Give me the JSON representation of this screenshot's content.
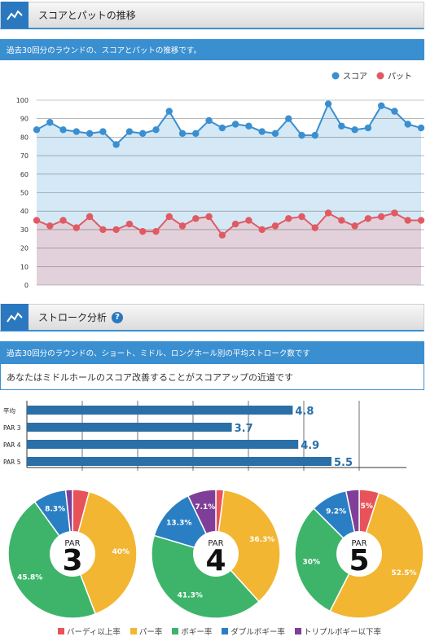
{
  "section1": {
    "title": "スコアとパットの推移",
    "desc": "過去30回分のラウンドの、スコアとパットの推移です。"
  },
  "section2": {
    "title": "ストローク分析",
    "desc": "過去30回分のラウンドの、ショート、ミドル、ロングホール別の平均ストローク数です",
    "advice": "あなたはミドルホールのスコア改善することがスコアアップの近道です"
  },
  "colors": {
    "score": "#3a8fd0",
    "putt": "#e05a63",
    "score_fill": "#d4e8f6",
    "putt_fill": "#e2d1db",
    "bar": "#2a6fa8",
    "birdie": "#e8535a",
    "par": "#f2b632",
    "bogey": "#3db46a",
    "double": "#2a7fc4",
    "triple": "#7f3f98"
  },
  "chart_data": [
    {
      "type": "line",
      "legend_position": "top-right",
      "ylim": [
        0,
        100
      ],
      "yticks": [
        0,
        10,
        20,
        30,
        40,
        50,
        60,
        70,
        80,
        90,
        100
      ],
      "grid": true,
      "series": [
        {
          "name": "スコア",
          "values": [
            84,
            88,
            84,
            83,
            82,
            83,
            76,
            83,
            82,
            84,
            94,
            82,
            82,
            89,
            85,
            87,
            86,
            83,
            82,
            90,
            81,
            81,
            98,
            86,
            84,
            85,
            97,
            94,
            87,
            85
          ]
        },
        {
          "name": "パット",
          "values": [
            35,
            32,
            35,
            31,
            37,
            30,
            30,
            33,
            29,
            29,
            37,
            32,
            36,
            37,
            27,
            33,
            35,
            30,
            32,
            36,
            37,
            31,
            39,
            35,
            32,
            36,
            37,
            39,
            35,
            35
          ]
        }
      ]
    },
    {
      "type": "bar",
      "orientation": "horizontal",
      "categories": [
        "平均",
        "PAR 3",
        "PAR 4",
        "PAR 5"
      ],
      "values": [
        4.8,
        3.7,
        4.9,
        5.5
      ],
      "labels": [
        "4.8",
        "3.7",
        "4.9",
        "5.5"
      ],
      "xlim": [
        0,
        6
      ]
    },
    {
      "type": "pie",
      "donut": true,
      "legend_position": "bottom",
      "categories": [
        "バーディ以上率",
        "パー率",
        "ボギー率",
        "ダブルボギー率",
        "トリプルボギー以下率"
      ],
      "charts": [
        {
          "center_top": "PAR",
          "center_big": "3",
          "values": [
            4.2,
            40,
            45.8,
            8.3,
            1.7
          ],
          "labels": [
            "",
            "40%",
            "45.8%",
            "8.3%",
            ""
          ]
        },
        {
          "center_top": "PAR",
          "center_big": "4",
          "values": [
            2.0,
            36.3,
            41.3,
            13.3,
            7.1
          ],
          "labels": [
            "",
            "36.3%",
            "41.3%",
            "13.3%",
            "7.1%"
          ]
        },
        {
          "center_top": "PAR",
          "center_big": "5",
          "values": [
            5,
            52.5,
            30,
            9.2,
            3.3
          ],
          "labels": [
            "5%",
            "52.5%",
            "30%",
            "9.2%",
            ""
          ]
        }
      ]
    }
  ]
}
